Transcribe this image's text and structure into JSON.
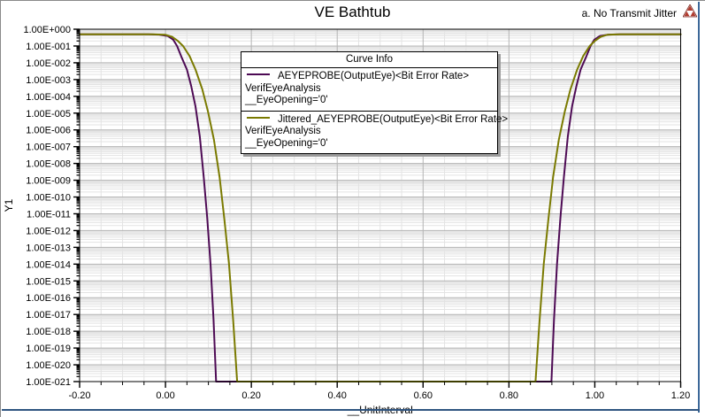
{
  "header": {
    "title": "VE Bathtub",
    "annotation": "a. No Transmit Jitter"
  },
  "legend": {
    "title": "Curve Info",
    "entries": [
      {
        "label": "AEYEPROBE(OutputEye)<Bit Error Rate>",
        "line2": "VerifEyeAnalysis",
        "line3": "__EyeOpening='0'",
        "color": "#4d0a54"
      },
      {
        "label": "Jittered_AEYEPROBE(OutputEye)<Bit Error Rate>",
        "line2": "VerifEyeAnalysis",
        "line3": "__EyeOpening='0'",
        "color": "#7a7a00"
      }
    ]
  },
  "colors": {
    "purple_curve": "#4d0a54",
    "olive_curve": "#7a7a00",
    "grid_major": "#b4b4b4",
    "grid_minor": "#e3e3e3",
    "axis": "#000000",
    "frame_blue": "#3c6899",
    "logo_red": "#b03a2e"
  },
  "chart_data": {
    "type": "line",
    "title": "VE Bathtub",
    "xlabel": "__UnitInterval",
    "ylabel": "Y1",
    "x_range": [
      -0.2,
      1.2
    ],
    "x_major_step": 0.2,
    "x_minor_step": 0.05,
    "y_scale": "log",
    "y_exp_top": 0,
    "y_exp_bottom": -21,
    "x_tick_labels": [
      "-0.20",
      "0.00",
      "0.20",
      "0.40",
      "0.60",
      "0.80",
      "1.00",
      "1.20"
    ],
    "y_tick_labels": [
      "1.00E+000",
      "1.00E-001",
      "1.00E-002",
      "1.00E-003",
      "1.00E-004",
      "1.00E-005",
      "1.00E-006",
      "1.00E-007",
      "1.00E-008",
      "1.00E-009",
      "1.00E-010",
      "1.00E-011",
      "1.00E-012",
      "1.00E-013",
      "1.00E-014",
      "1.00E-015",
      "1.00E-016",
      "1.00E-017",
      "1.00E-018",
      "1.00E-019",
      "1.00E-020",
      "1.00E-021"
    ],
    "flat_level_log10": -0.3,
    "series": [
      {
        "name": "AEYEPROBE(OutputEye)<Bit Error Rate>",
        "color": "#4d0a54",
        "points": [
          [
            -0.2,
            -0.3
          ],
          [
            -0.04,
            -0.3
          ],
          [
            -0.015,
            -0.32
          ],
          [
            0.005,
            -0.4
          ],
          [
            0.018,
            -0.62
          ],
          [
            0.027,
            -1.0
          ],
          [
            0.038,
            -1.7
          ],
          [
            0.05,
            -2.4
          ],
          [
            0.06,
            -3.4
          ],
          [
            0.07,
            -4.6
          ],
          [
            0.08,
            -6.4
          ],
          [
            0.089,
            -8.8
          ],
          [
            0.097,
            -11.2
          ],
          [
            0.105,
            -14.0
          ],
          [
            0.112,
            -17.3
          ],
          [
            0.118,
            -21.0
          ],
          [
            0.899,
            -21.0
          ],
          [
            0.905,
            -17.3
          ],
          [
            0.912,
            -14.0
          ],
          [
            0.92,
            -11.2
          ],
          [
            0.928,
            -8.8
          ],
          [
            0.937,
            -6.4
          ],
          [
            0.947,
            -4.6
          ],
          [
            0.957,
            -3.4
          ],
          [
            0.967,
            -2.4
          ],
          [
            0.979,
            -1.7
          ],
          [
            0.99,
            -1.0
          ],
          [
            0.999,
            -0.62
          ],
          [
            1.012,
            -0.4
          ],
          [
            1.032,
            -0.32
          ],
          [
            1.057,
            -0.3
          ],
          [
            1.2,
            -0.3
          ]
        ]
      },
      {
        "name": "Jittered_AEYEPROBE(OutputEye)<Bit Error Rate>",
        "color": "#7a7a00",
        "points": [
          [
            -0.2,
            -0.3
          ],
          [
            -0.03,
            -0.3
          ],
          [
            0.0,
            -0.33
          ],
          [
            0.015,
            -0.45
          ],
          [
            0.028,
            -0.68
          ],
          [
            0.041,
            -1.0
          ],
          [
            0.056,
            -1.6
          ],
          [
            0.07,
            -2.4
          ],
          [
            0.086,
            -3.6
          ],
          [
            0.099,
            -4.9
          ],
          [
            0.113,
            -6.6
          ],
          [
            0.126,
            -8.8
          ],
          [
            0.137,
            -11.3
          ],
          [
            0.148,
            -14.0
          ],
          [
            0.158,
            -17.5
          ],
          [
            0.167,
            -21.0
          ],
          [
            0.862,
            -21.0
          ],
          [
            0.871,
            -17.5
          ],
          [
            0.881,
            -14.0
          ],
          [
            0.892,
            -11.3
          ],
          [
            0.903,
            -8.8
          ],
          [
            0.916,
            -6.6
          ],
          [
            0.93,
            -4.9
          ],
          [
            0.943,
            -3.6
          ],
          [
            0.959,
            -2.4
          ],
          [
            0.973,
            -1.6
          ],
          [
            0.988,
            -1.0
          ],
          [
            1.001,
            -0.68
          ],
          [
            1.014,
            -0.45
          ],
          [
            1.029,
            -0.33
          ],
          [
            1.059,
            -0.3
          ],
          [
            1.2,
            -0.3
          ]
        ]
      }
    ]
  }
}
